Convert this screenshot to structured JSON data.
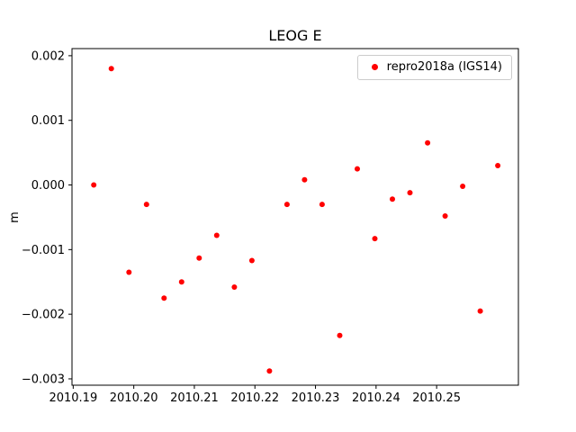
{
  "chart_data": {
    "type": "scatter",
    "title": "LEOG E",
    "xlabel": "",
    "ylabel": "m",
    "legend": {
      "label": "repro2018a (IGS14)",
      "position": "upper right"
    },
    "marker_color": "#ff0000",
    "grid": false,
    "xlim": [
      2010.1898,
      2010.2635
    ],
    "ylim": [
      -0.003098,
      0.00211
    ],
    "xticks": [
      2010.19,
      2010.2,
      2010.21,
      2010.22,
      2010.23,
      2010.24,
      2010.25
    ],
    "xtick_labels": [
      "2010.19",
      "2010.20",
      "2010.21",
      "2010.22",
      "2010.23",
      "2010.24",
      "2010.25"
    ],
    "yticks": [
      0.002,
      0.001,
      0.0,
      -0.001,
      -0.002,
      -0.003
    ],
    "ytick_labels": [
      "0.002",
      "0.001",
      "0.000",
      "−0.001",
      "−0.002",
      "−0.003"
    ],
    "x": [
      2010.1934,
      2010.1963,
      2010.1992,
      2010.2021,
      2010.205,
      2010.2079,
      2010.2108,
      2010.2137,
      2010.2166,
      2010.2195,
      2010.2224,
      2010.2253,
      2010.2282,
      2010.2311,
      2010.234,
      2010.2369,
      2010.2398,
      2010.2427,
      2010.2456,
      2010.2485,
      2010.2514,
      2010.2543,
      2010.2572,
      2010.2601
    ],
    "y": [
      0.0,
      0.0018,
      -0.00135,
      -0.0003,
      -0.00175,
      -0.0015,
      -0.00113,
      -0.00078,
      -0.00158,
      -0.00117,
      -0.00288,
      -0.0003,
      8e-05,
      -0.0003,
      -0.00233,
      0.00025,
      -0.00083,
      -0.00022,
      -0.00012,
      0.00065,
      -0.00048,
      -2e-05,
      -0.00195,
      0.0003
    ]
  }
}
